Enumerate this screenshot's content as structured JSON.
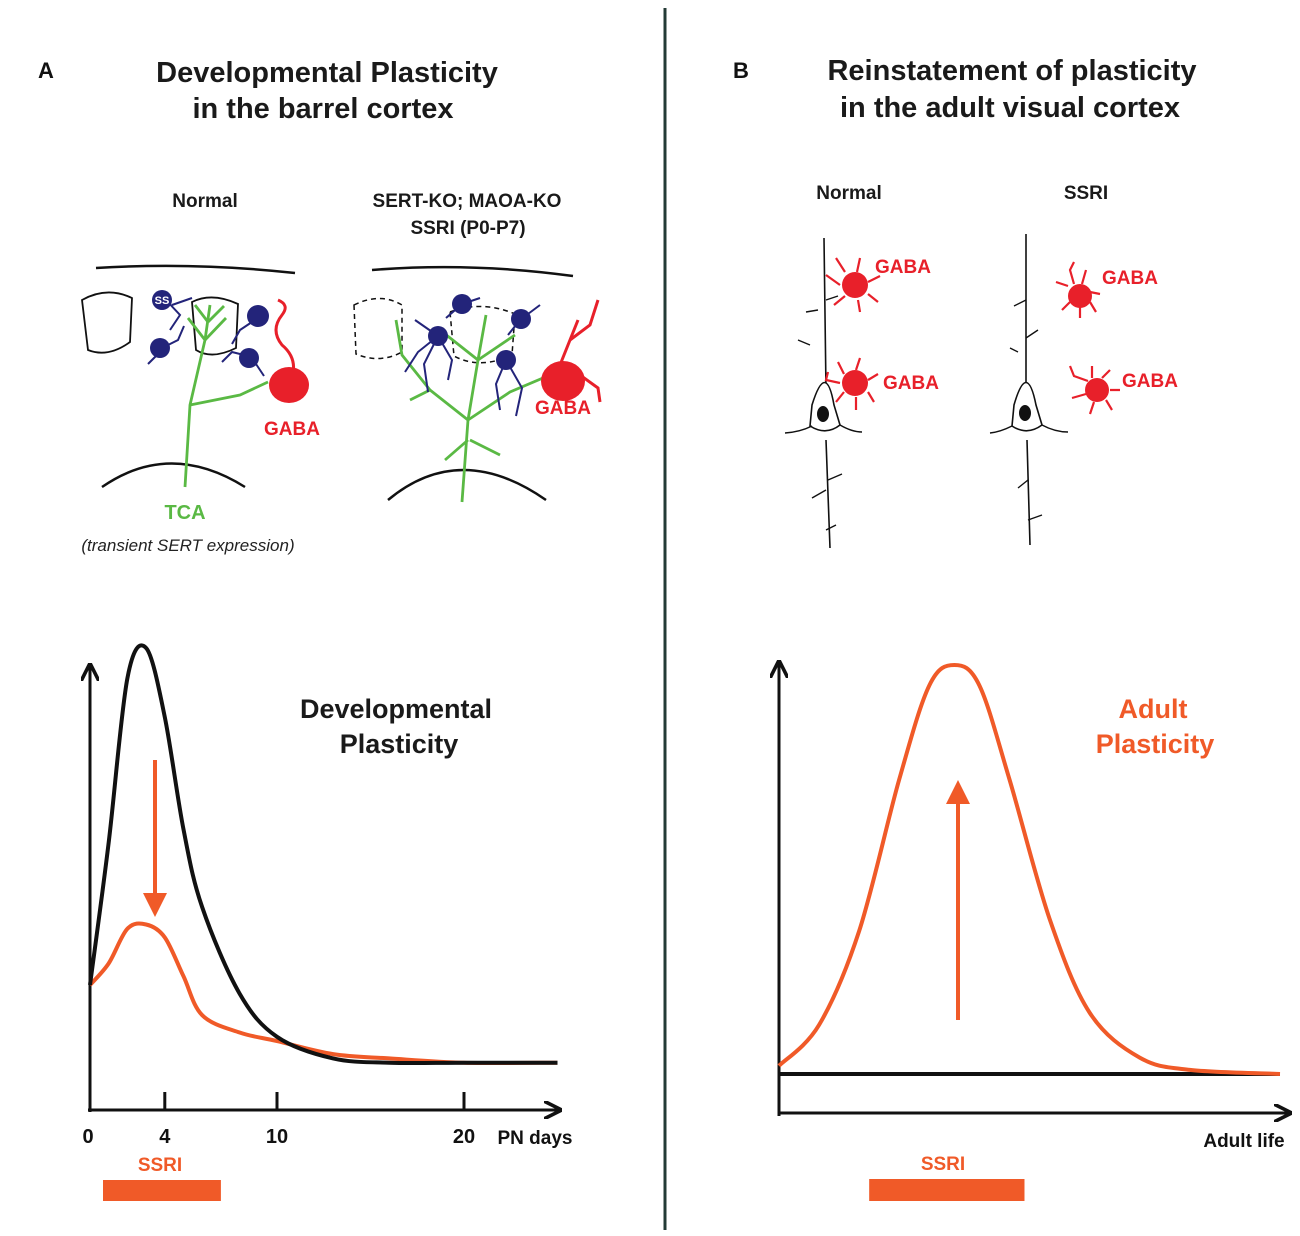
{
  "colors": {
    "black": "#111111",
    "red": "#e8202a",
    "orange": "#f05a28",
    "green": "#5ab944",
    "blue": "#23247a",
    "divider": "#243b36"
  },
  "panelA": {
    "letter": "A",
    "title_line1": "Developmental Plasticity",
    "title_line2": "in the barrel cortex",
    "normal_label": "Normal",
    "ko_label_line1": "SERT-KO; MAOA-KO",
    "ko_label_line2": "SSRI (P0-P7)",
    "ss_label": "SS",
    "gaba_label": "GABA",
    "tca_label": "TCA",
    "tca_note": "(transient SERT expression)",
    "chart_label_line1": "Developmental",
    "chart_label_line2": "Plasticity",
    "axis_unit": "PN days",
    "ssri_label": "SSRI"
  },
  "panelB": {
    "letter": "B",
    "title_line1": "Reinstatement of plasticity",
    "title_line2": "in the adult visual cortex",
    "normal_label": "Normal",
    "ssri_cond_label": "SSRI",
    "gaba_label": "GABA",
    "chart_label_line1": "Adult",
    "chart_label_line2": "Plasticity",
    "axis_label": "Adult life",
    "ssri_label": "SSRI"
  },
  "chart_data": [
    {
      "type": "line",
      "title": "Developmental Plasticity",
      "xlabel": "PN days",
      "ylabel": "",
      "xticks": [
        "0",
        "4",
        "10",
        "20"
      ],
      "xlim": [
        0,
        25
      ],
      "ylim": [
        0,
        1
      ],
      "series": [
        {
          "name": "Normal",
          "color": "#111111",
          "x": [
            0,
            1,
            2,
            3,
            4,
            5,
            6,
            8,
            10,
            13,
            16,
            20,
            25
          ],
          "values": [
            0.22,
            0.55,
            0.93,
            1.0,
            0.84,
            0.58,
            0.4,
            0.2,
            0.1,
            0.05,
            0.04,
            0.04,
            0.04
          ]
        },
        {
          "name": "SSRI",
          "color": "#f05a28",
          "x": [
            0,
            1,
            2,
            3,
            4,
            5,
            6,
            8,
            10,
            13,
            16,
            20,
            25
          ],
          "values": [
            0.22,
            0.27,
            0.35,
            0.36,
            0.33,
            0.24,
            0.15,
            0.11,
            0.09,
            0.06,
            0.05,
            0.04,
            0.04
          ]
        }
      ],
      "annotation": "downward arrow (normal to SSRI)",
      "ssri_interval": [
        0,
        7
      ]
    },
    {
      "type": "line",
      "title": "Adult Plasticity",
      "xlabel": "Adult life",
      "ylabel": "",
      "xlim": [
        0,
        1
      ],
      "ylim": [
        0,
        1
      ],
      "series": [
        {
          "name": "Normal",
          "color": "#111111",
          "x": [
            0,
            0.2,
            0.4,
            0.6,
            0.8,
            1.0
          ],
          "values": [
            0,
            0,
            0,
            0,
            0,
            0
          ]
        },
        {
          "name": "SSRI",
          "color": "#f05a28",
          "x": [
            0,
            0.08,
            0.16,
            0.24,
            0.3,
            0.35,
            0.4,
            0.46,
            0.54,
            0.62,
            0.72,
            0.82,
            1.0
          ],
          "values": [
            0.02,
            0.12,
            0.35,
            0.72,
            0.95,
            1.0,
            0.95,
            0.72,
            0.38,
            0.15,
            0.04,
            0.01,
            0.0
          ]
        }
      ],
      "annotation": "upward arrow (SSRI increases adult plasticity)",
      "ssri_interval": [
        0.18,
        0.49
      ]
    }
  ]
}
